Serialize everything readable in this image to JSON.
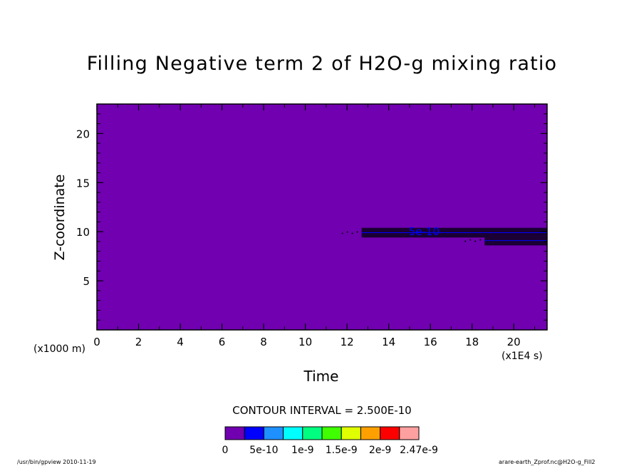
{
  "chart_data": {
    "type": "heatmap",
    "title": "Filling Negative term 2 of H2O-g mixing ratio",
    "xlabel": "Time",
    "ylabel": "Z-coordinate",
    "x_unit_label": "(x1E4 s)",
    "y_unit_label": "(x1000 m)",
    "xlim": [
      0,
      21.6
    ],
    "ylim": [
      0,
      23
    ],
    "xticks": [
      0,
      2,
      4,
      6,
      8,
      10,
      12,
      14,
      16,
      18,
      20
    ],
    "yticks": [
      5,
      10,
      15,
      20
    ],
    "contour_interval_text": "CONTOUR INTERVAL = 2.500E-10",
    "contour_label": "5e-10",
    "contour_label_at": {
      "x": 15.7,
      "y": 10.0
    },
    "background_value": 0,
    "features": [
      {
        "value": "5e-10",
        "x_start": 12.7,
        "x_end": 21.6,
        "z": 9.9,
        "z_thickness": 0.45
      },
      {
        "value": "5e-10",
        "x_start": 18.6,
        "x_end": 21.6,
        "z": 9.1,
        "z_thickness": 0.45
      }
    ],
    "colorbar": {
      "colors": [
        "#7000b0",
        "#0000ff",
        "#1e90ff",
        "#00ffff",
        "#00ff80",
        "#40ff00",
        "#e0ff00",
        "#ffa000",
        "#ff0000",
        "#ffa0a0"
      ],
      "labels": [
        "0",
        "5e-10",
        "1e-9",
        "1.5e-9",
        "2e-9",
        "2.47e-9"
      ]
    }
  },
  "footer": {
    "left": "/usr/bin/gpview   2010-11-19",
    "right": "arare-earth_Zprof.nc@H2O-g_Fill2"
  }
}
